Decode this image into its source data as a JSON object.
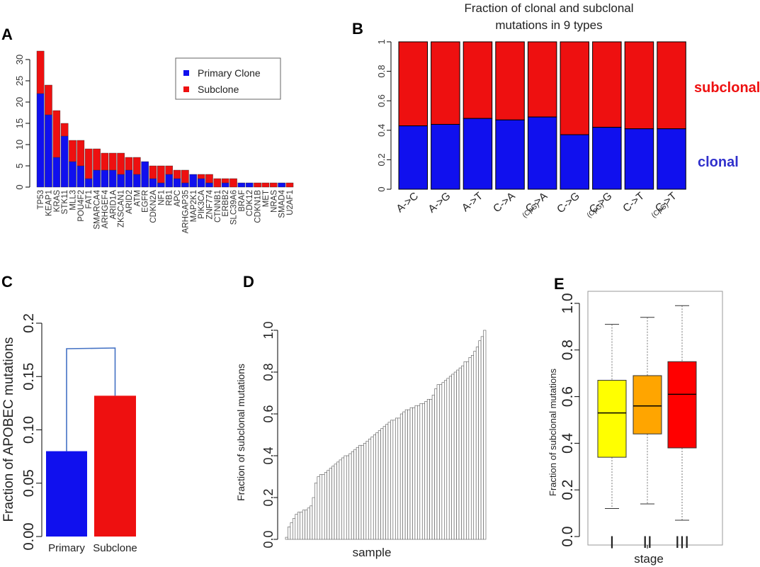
{
  "panels": {
    "A": {
      "letter": "A"
    },
    "B": {
      "letter": "B"
    },
    "C": {
      "letter": "C"
    },
    "D": {
      "letter": "D"
    },
    "E": {
      "letter": "E"
    }
  },
  "colors": {
    "clonal": "#1010ee",
    "subclonal": "#ee1010",
    "stage_I": "#ffff00",
    "stage_II": "#ffa500",
    "stage_III": "#ff0000"
  },
  "chart_data": [
    {
      "id": "A",
      "type": "bar",
      "stacked": true,
      "categories": [
        "TP53",
        "KEAP1",
        "KRAS",
        "STK11",
        "MLL3",
        "POU4F2",
        "FAT1",
        "SMARCA4",
        "ARHGEF4",
        "ARID1A",
        "ZKSCAN1",
        "ARID2",
        "ATM",
        "EGFR",
        "CDKN2A",
        "NF1",
        "RB1",
        "APC",
        "ARHGAP35",
        "MAP2K1",
        "PIK3CA",
        "ZNF774",
        "CTNNB1",
        "ERBB2",
        "SLC39A6",
        "BRAF",
        "CDK12",
        "CDKN1B",
        "MET",
        "NRAS",
        "SMAD4",
        "U2AF1"
      ],
      "series": [
        {
          "name": "Primary Clone",
          "values": [
            22,
            17,
            7,
            12,
            6,
            5,
            2,
            4,
            4,
            4,
            3,
            4,
            3,
            6,
            2,
            1,
            3,
            2,
            1,
            3,
            2,
            1,
            0,
            1,
            0,
            1,
            1,
            0,
            0,
            0,
            1,
            0
          ]
        },
        {
          "name": "Subclone",
          "values": [
            10,
            7,
            11,
            3,
            5,
            6,
            7,
            5,
            4,
            4,
            5,
            3,
            4,
            0,
            3,
            4,
            2,
            2,
            3,
            0,
            1,
            2,
            2,
            1,
            2,
            0,
            0,
            1,
            1,
            1,
            0,
            1
          ]
        }
      ],
      "yticks": [
        0,
        5,
        10,
        15,
        20,
        25,
        30
      ],
      "ylim": [
        0,
        32
      ],
      "legend": "top-right"
    },
    {
      "id": "B",
      "type": "bar",
      "stacked": true,
      "title_lines": [
        "Fraction of clonal and subclonal",
        "mutations in 9 types"
      ],
      "categories": [
        {
          "main": "A->C",
          "sub": ""
        },
        {
          "main": "A->G",
          "sub": ""
        },
        {
          "main": "A->T",
          "sub": ""
        },
        {
          "main": "C->A",
          "sub": ""
        },
        {
          "main": "C->A",
          "sub": "(CpG)"
        },
        {
          "main": "C->G",
          "sub": ""
        },
        {
          "main": "C->G",
          "sub": "(CpG)"
        },
        {
          "main": "C->T",
          "sub": ""
        },
        {
          "main": "C->T",
          "sub": "(CpG)"
        }
      ],
      "series": [
        {
          "name": "clonal",
          "values": [
            0.43,
            0.44,
            0.48,
            0.47,
            0.49,
            0.37,
            0.42,
            0.41,
            0.41
          ]
        },
        {
          "name": "subclonal",
          "values": [
            0.57,
            0.56,
            0.52,
            0.53,
            0.51,
            0.63,
            0.58,
            0.59,
            0.59
          ]
        }
      ],
      "yticks": [
        "0",
        "0.2",
        "0.4",
        "0.6",
        "0.8",
        "1"
      ],
      "ylim": [
        0,
        1
      ]
    },
    {
      "id": "C",
      "type": "bar",
      "categories": [
        "Primary",
        "Subclone"
      ],
      "values": [
        0.08,
        0.132
      ],
      "ylabel": "Fraction of APOBEC mutations",
      "yticks": [
        "0.00",
        "0.05",
        "0.10",
        "0.15",
        "0.2"
      ],
      "ylim": [
        0,
        0.2
      ]
    },
    {
      "id": "D",
      "type": "bar",
      "values": [
        0.01,
        0.06,
        0.08,
        0.1,
        0.12,
        0.13,
        0.13,
        0.14,
        0.14,
        0.15,
        0.16,
        0.2,
        0.27,
        0.3,
        0.31,
        0.31,
        0.32,
        0.33,
        0.34,
        0.35,
        0.36,
        0.37,
        0.38,
        0.39,
        0.4,
        0.4,
        0.41,
        0.42,
        0.43,
        0.44,
        0.45,
        0.45,
        0.46,
        0.47,
        0.48,
        0.49,
        0.5,
        0.51,
        0.52,
        0.53,
        0.54,
        0.55,
        0.56,
        0.57,
        0.57,
        0.58,
        0.58,
        0.6,
        0.61,
        0.62,
        0.62,
        0.63,
        0.63,
        0.64,
        0.64,
        0.65,
        0.65,
        0.66,
        0.67,
        0.67,
        0.69,
        0.72,
        0.74,
        0.74,
        0.75,
        0.76,
        0.77,
        0.78,
        0.79,
        0.8,
        0.81,
        0.82,
        0.83,
        0.85,
        0.85,
        0.87,
        0.88,
        0.9,
        0.92,
        0.95,
        0.97,
        1.0
      ],
      "xlabel": "sample",
      "ylabel": "Fraction of subclonal mutations",
      "yticks": [
        "0.0",
        "0.2",
        "0.4",
        "0.6",
        "0.8",
        "1.0"
      ],
      "ylim": [
        0,
        1
      ]
    },
    {
      "id": "E",
      "type": "box",
      "categories": [
        "I",
        "II",
        "III"
      ],
      "boxes": [
        {
          "min": 0.12,
          "q1": 0.34,
          "median": 0.53,
          "q3": 0.67,
          "max": 0.91
        },
        {
          "min": 0.14,
          "q1": 0.44,
          "median": 0.56,
          "q3": 0.69,
          "max": 0.94
        },
        {
          "min": 0.07,
          "q1": 0.38,
          "median": 0.61,
          "q3": 0.75,
          "max": 0.99
        }
      ],
      "xlabel": "stage",
      "ylabel": "Fraction of subclonal mutations",
      "yticks": [
        "0.0",
        "0.2",
        "0.4",
        "0.6",
        "0.8",
        "1.0"
      ],
      "ylim": [
        0,
        1
      ]
    }
  ]
}
